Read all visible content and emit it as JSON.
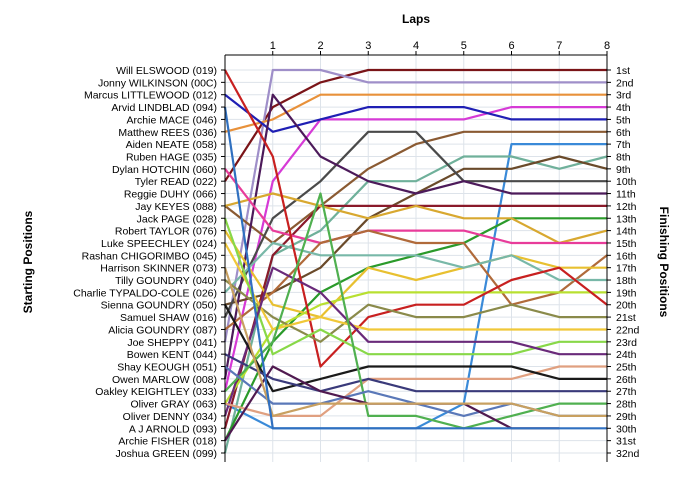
{
  "chart_data": {
    "type": "line",
    "title": "",
    "xlabel": "Laps",
    "ylabel_left": "Starting Positions",
    "ylabel_right": "Finishing Positions",
    "x": [
      0,
      1,
      2,
      3,
      4,
      5,
      6,
      7,
      8
    ],
    "xlim": [
      0,
      8
    ],
    "ylim": [
      1,
      32
    ],
    "y_inverted": true,
    "grid": true,
    "start_labels": [
      "Will ELSWOOD (019)",
      "Jonny WILKINSON (00C)",
      "Marcus LITTLEWOOD (012)",
      "Arvid LINDBLAD (094)",
      "Archie MACE (046)",
      "Matthew REES (036)",
      "Aiden NEATE (058)",
      "Ruben HAGE (035)",
      "Dylan HOTCHIN (060)",
      "Tyler READ (022)",
      "Reggie DUHY (066)",
      "Jay KEYES (088)",
      "Jack PAGE (028)",
      "Robert TAYLOR (076)",
      "Luke SPEECHLEY (024)",
      "Rashan CHIGORIMBO (045)",
      "Harrison SKINNER (073)",
      "Tilly GOUNDRY (040)",
      "Charlie TYPALDO-COLE (026)",
      "Sienna GOUNDRY (050)",
      "Samuel SHAW (016)",
      "Alicia GOUNDRY (087)",
      "Joe SHEPPY (041)",
      "Bowen KENT (044)",
      "Shay KEOUGH (051)",
      "Owen MARLOW (008)",
      "Oakley KEIGHTLEY (033)",
      "Oliver GRAY (063)",
      "Oliver DENNY (034)",
      "A J ARNOLD (093)",
      "Archie FISHER (018)",
      "Joshua GREEN (099)"
    ],
    "finish_labels": [
      "1st",
      "2nd",
      "3rd",
      "4th",
      "5th",
      "6th",
      "7th",
      "8th",
      "9th",
      "10th",
      "11th",
      "12th",
      "13th",
      "14th",
      "15th",
      "16th",
      "17th",
      "18th",
      "19th",
      "20th",
      "21st",
      "22nd",
      "23rd",
      "24th",
      "25th",
      "26th",
      "27th",
      "28th",
      "29th",
      "30th",
      "31st",
      "32nd"
    ],
    "series": [
      {
        "color": "#7a1418",
        "values": [
          10,
          4,
          2,
          1,
          1,
          1,
          1,
          1,
          1
        ]
      },
      {
        "color": "#9f8fc9",
        "values": [
          23,
          1,
          1,
          2,
          2,
          2,
          2,
          2,
          2
        ]
      },
      {
        "color": "#e8913a",
        "values": [
          6,
          5,
          3,
          3,
          3,
          3,
          3,
          3,
          3
        ]
      },
      {
        "color": "#d63ad6",
        "values": [
          27,
          10,
          5,
          5,
          5,
          5,
          4,
          4,
          4
        ]
      },
      {
        "color": "#1f1fb4",
        "values": [
          3,
          6,
          5,
          4,
          4,
          4,
          5,
          5,
          5
        ]
      },
      {
        "color": "#8a5a32",
        "values": [
          12,
          15,
          12,
          9,
          7,
          6,
          6,
          6,
          6
        ]
      },
      {
        "color": "#3a8ad8",
        "values": [
          28,
          30,
          30,
          30,
          30,
          28,
          7,
          7,
          7
        ]
      },
      {
        "color": "#6fb09a",
        "values": [
          32,
          16,
          14,
          10,
          10,
          8,
          8,
          9,
          8
        ]
      },
      {
        "color": "#6a4a2a",
        "values": [
          20,
          19,
          17,
          13,
          11,
          9,
          9,
          8,
          9
        ]
      },
      {
        "color": "#4a4a4a",
        "values": [
          21,
          13,
          10,
          6,
          6,
          10,
          10,
          10,
          10
        ]
      },
      {
        "color": "#4c1a5a",
        "values": [
          26,
          3,
          8,
          10,
          11,
          10,
          11,
          11,
          11
        ]
      },
      {
        "color": "#8a1a2a",
        "values": [
          30,
          16,
          12,
          12,
          12,
          12,
          12,
          12,
          12
        ]
      },
      {
        "color": "#2a9a2a",
        "values": [
          31,
          23,
          19,
          17,
          16,
          15,
          13,
          13,
          13
        ]
      },
      {
        "color": "#d8a830",
        "values": [
          12,
          11,
          12,
          13,
          12,
          13,
          13,
          15,
          14
        ]
      },
      {
        "color": "#e83c9a",
        "values": [
          9,
          14,
          15,
          14,
          14,
          14,
          15,
          15,
          15
        ]
      },
      {
        "color": "#b06a3a",
        "values": [
          22,
          19,
          15,
          14,
          15,
          15,
          20,
          19,
          16
        ]
      },
      {
        "color": "#e8c030",
        "values": [
          14,
          20,
          21,
          17,
          18,
          17,
          16,
          17,
          17
        ]
      },
      {
        "color": "#78b8a8",
        "values": [
          19,
          15,
          16,
          16,
          16,
          17,
          16,
          18,
          18
        ]
      },
      {
        "color": "#b8e030",
        "values": [
          28,
          22,
          20,
          19,
          19,
          19,
          19,
          19,
          19
        ]
      },
      {
        "color": "#c82020",
        "values": [
          1,
          8,
          25,
          21,
          20,
          20,
          18,
          17,
          20
        ]
      },
      {
        "color": "#8a8a4a",
        "values": [
          18,
          21,
          23,
          20,
          21,
          21,
          20,
          21,
          21
        ]
      },
      {
        "color": "#f0c838",
        "values": [
          15,
          22,
          21,
          22,
          22,
          22,
          22,
          22,
          22
        ]
      },
      {
        "color": "#88d848",
        "values": [
          13,
          24,
          22,
          24,
          24,
          24,
          24,
          23,
          23
        ]
      },
      {
        "color": "#6a2a7a",
        "values": [
          29,
          17,
          19,
          23,
          23,
          23,
          23,
          24,
          24
        ]
      },
      {
        "color": "#e0a080",
        "values": [
          28,
          29,
          29,
          26,
          26,
          26,
          26,
          25,
          25
        ]
      },
      {
        "color": "#1a1a1a",
        "values": [
          20,
          27,
          26,
          25,
          25,
          25,
          25,
          26,
          26
        ]
      },
      {
        "color": "#3a3a7a",
        "values": [
          24,
          26,
          27,
          26,
          27,
          27,
          27,
          27,
          27
        ]
      },
      {
        "color": "#50b050",
        "values": [
          27,
          23,
          11,
          29,
          29,
          30,
          29,
          28,
          28
        ]
      },
      {
        "color": "#5a78b8",
        "values": [
          25,
          28,
          28,
          27,
          28,
          29,
          28,
          29,
          29
        ]
      },
      {
        "color": "#501a50",
        "values": [
          31,
          25,
          27,
          28,
          28,
          28,
          30,
          30,
          null
        ]
      },
      {
        "color": "#c8a060",
        "values": [
          17,
          29,
          28,
          28,
          28,
          28,
          28,
          29,
          29
        ]
      },
      {
        "color": "#3070c0",
        "values": [
          4,
          30,
          30,
          30,
          30,
          30,
          30,
          30,
          30
        ]
      }
    ]
  }
}
